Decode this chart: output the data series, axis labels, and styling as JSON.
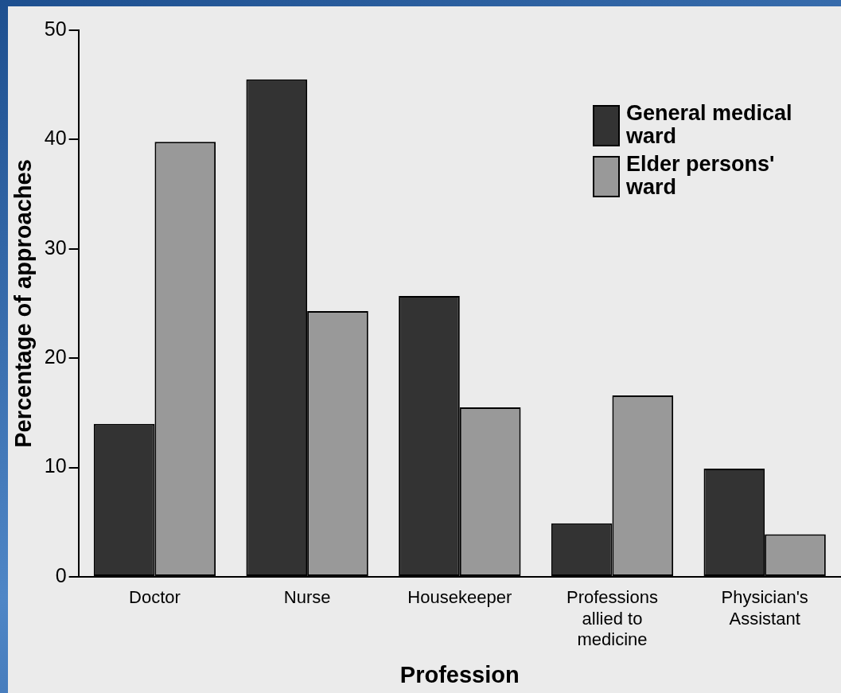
{
  "chart_data": {
    "type": "bar",
    "xlabel": "Profession",
    "ylabel": "Percentage of approaches",
    "categories": [
      "Doctor",
      "Nurse",
      "Housekeeper",
      "Professions allied to medicine",
      "Physician's Assistant"
    ],
    "series": [
      {
        "name": "General medical ward",
        "color": "#333333",
        "values": [
          14,
          45.5,
          25.7,
          4.9,
          9.9
        ]
      },
      {
        "name": "Elder persons' ward",
        "color": "#999999",
        "values": [
          39.8,
          24.3,
          15.5,
          16.6,
          3.9
        ]
      }
    ],
    "ylim": [
      0,
      50
    ],
    "yticks": [
      0,
      10,
      20,
      30,
      40,
      50
    ],
    "grid": false,
    "legend": "top right"
  }
}
